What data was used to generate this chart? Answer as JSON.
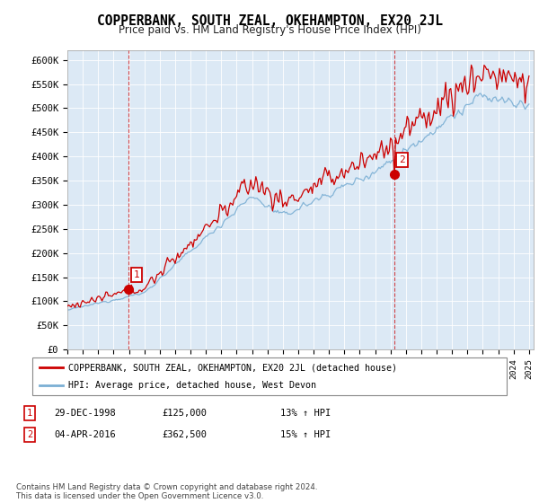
{
  "title": "COPPERBANK, SOUTH ZEAL, OKEHAMPTON, EX20 2JL",
  "subtitle": "Price paid vs. HM Land Registry's House Price Index (HPI)",
  "ylabel_ticks": [
    "£0",
    "£50K",
    "£100K",
    "£150K",
    "£200K",
    "£250K",
    "£300K",
    "£350K",
    "£400K",
    "£450K",
    "£500K",
    "£550K",
    "£600K"
  ],
  "ylim": [
    0,
    620000
  ],
  "xlim_start": 1995.0,
  "xlim_end": 2025.3,
  "marker1_x": 1998.99,
  "marker1_y": 125000,
  "marker1_label": "1",
  "marker2_x": 2016.25,
  "marker2_y": 362500,
  "marker2_label": "2",
  "vline1_x": 1998.99,
  "vline2_x": 2016.25,
  "legend_line1_color": "#cc0000",
  "legend_line1_label": "COPPERBANK, SOUTH ZEAL, OKEHAMPTON, EX20 2JL (detached house)",
  "legend_line2_color": "#7bafd4",
  "legend_line2_label": "HPI: Average price, detached house, West Devon",
  "table_row1": [
    "1",
    "29-DEC-1998",
    "£125,000",
    "13% ↑ HPI"
  ],
  "table_row2": [
    "2",
    "04-APR-2016",
    "£362,500",
    "15% ↑ HPI"
  ],
  "footer": "Contains HM Land Registry data © Crown copyright and database right 2024.\nThis data is licensed under the Open Government Licence v3.0.",
  "bg_color": "#ffffff",
  "plot_bg_color": "#dce9f5",
  "grid_color": "#ffffff",
  "line1_color": "#cc0000",
  "line2_color": "#7bafd4"
}
